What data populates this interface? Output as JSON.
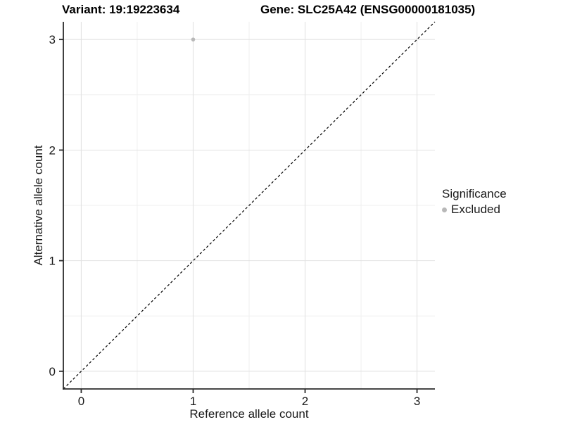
{
  "chart_data": {
    "type": "scatter",
    "titles": {
      "left": "Variant: 19:19223634",
      "right": "Gene: SLC25A42 (ENSG00000181035)"
    },
    "xlabel": "Reference allele count",
    "ylabel": "Alternative allele count",
    "xlim": [
      -0.16,
      3.16
    ],
    "ylim": [
      -0.16,
      3.16
    ],
    "xticks": [
      0,
      1,
      2,
      3
    ],
    "yticks": [
      0,
      1,
      2,
      3
    ],
    "minor_gridlines_x": [
      0.5,
      1.5,
      2.5
    ],
    "minor_gridlines_y": [
      0.5,
      1.5,
      2.5
    ],
    "grid": true,
    "identity_line": {
      "style": "dashed",
      "color": "#000000",
      "from": [
        -0.16,
        -0.16
      ],
      "to": [
        3.16,
        3.16
      ]
    },
    "series": [
      {
        "name": "Excluded",
        "color": "#b8b8b8",
        "points": [
          {
            "x": 1,
            "y": 3
          }
        ]
      }
    ],
    "legend": {
      "position": "right",
      "title": "Significance",
      "items": [
        {
          "label": "Excluded",
          "color": "#b8b8b8"
        }
      ]
    },
    "style": {
      "background": "#ffffff",
      "major_grid_color": "#e2e2e2",
      "minor_grid_color": "#efefef",
      "axis_color": "#2b2b2b",
      "tick_label_color": "#1a1a1a",
      "point_color": "#b8b8b8"
    }
  }
}
